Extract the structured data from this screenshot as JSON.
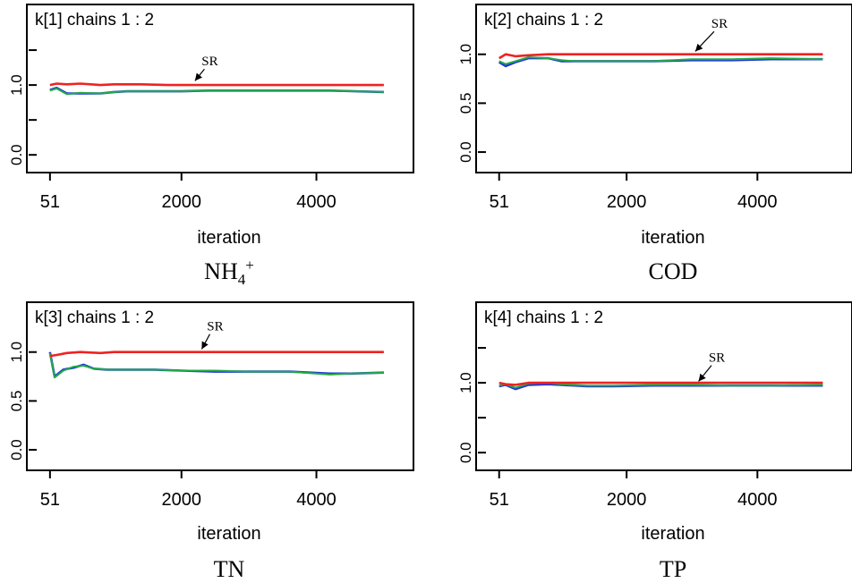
{
  "chart_data": [
    {
      "type": "line",
      "title": "k[1] chains 1 : 2",
      "xlabel": "iteration",
      "caption": "NH",
      "caption_sub": "4",
      "caption_sup": "+",
      "annotation": "SR",
      "xlim": [
        0,
        5200
      ],
      "ylim": [
        -0.1,
        2.0
      ],
      "xticks": [
        51,
        2000,
        4000
      ],
      "yticks": [
        0.0,
        1.0
      ],
      "yminor": [
        0.5,
        1.5
      ],
      "grid": false,
      "series": [
        {
          "color": "#2233dd",
          "x": [
            51,
            150,
            300,
            500,
            800,
            1000,
            1200,
            1600,
            2000,
            2400,
            3000,
            3600,
            4200,
            5000
          ],
          "y": [
            0.93,
            0.96,
            0.88,
            0.88,
            0.88,
            0.9,
            0.91,
            0.91,
            0.91,
            0.92,
            0.92,
            0.92,
            0.92,
            0.9
          ]
        },
        {
          "color": "#22aa44",
          "x": [
            51,
            150,
            300,
            500,
            800,
            1000,
            1200,
            1600,
            2000,
            2400,
            3000,
            3600,
            4200,
            5000
          ],
          "y": [
            0.92,
            0.95,
            0.87,
            0.89,
            0.88,
            0.9,
            0.91,
            0.91,
            0.91,
            0.92,
            0.92,
            0.92,
            0.92,
            0.9
          ]
        },
        {
          "color": "#ee2222",
          "x": [
            51,
            150,
            300,
            500,
            800,
            1000,
            1400,
            1800,
            2300,
            2800,
            3500,
            4200,
            5000
          ],
          "y": [
            1.0,
            1.02,
            1.01,
            1.02,
            1.0,
            1.01,
            1.01,
            1.0,
            1.0,
            1.0,
            1.0,
            1.0,
            1.0
          ]
        }
      ]
    },
    {
      "type": "line",
      "title": "k[2] chains 1 : 2",
      "xlabel": "iteration",
      "caption": "COD",
      "annotation": "SR",
      "xlim": [
        0,
        5200
      ],
      "ylim": [
        -0.1,
        1.4
      ],
      "xticks": [
        51,
        2000,
        4000
      ],
      "yticks": [
        0.0,
        0.5,
        1.0
      ],
      "grid": false,
      "series": [
        {
          "color": "#2233dd",
          "x": [
            51,
            150,
            300,
            500,
            800,
            1000,
            1200,
            1600,
            2000,
            2400,
            3000,
            3600,
            4200,
            5000
          ],
          "y": [
            0.92,
            0.88,
            0.92,
            0.96,
            0.96,
            0.93,
            0.93,
            0.93,
            0.93,
            0.93,
            0.94,
            0.94,
            0.95,
            0.95
          ]
        },
        {
          "color": "#22aa44",
          "x": [
            51,
            150,
            300,
            500,
            800,
            1000,
            1200,
            1600,
            2000,
            2400,
            3000,
            3600,
            4200,
            5000
          ],
          "y": [
            0.93,
            0.9,
            0.93,
            0.97,
            0.96,
            0.94,
            0.93,
            0.93,
            0.93,
            0.93,
            0.95,
            0.95,
            0.96,
            0.95
          ]
        },
        {
          "color": "#ee2222",
          "x": [
            51,
            150,
            300,
            500,
            800,
            1200,
            2000,
            3000,
            4000,
            5000
          ],
          "y": [
            0.96,
            1.0,
            0.98,
            0.99,
            1.0,
            1.0,
            1.0,
            1.0,
            1.0,
            1.0
          ]
        }
      ]
    },
    {
      "type": "line",
      "title": "k[3] chains 1 : 2",
      "xlabel": "iteration",
      "caption": "TN",
      "annotation": "SR",
      "xlim": [
        0,
        5200
      ],
      "ylim": [
        -0.1,
        1.4
      ],
      "xticks": [
        51,
        2000,
        4000
      ],
      "yticks": [
        0.0,
        0.5,
        1.0
      ],
      "grid": false,
      "series": [
        {
          "color": "#2233dd",
          "x": [
            51,
            120,
            250,
            400,
            550,
            700,
            900,
            1200,
            1600,
            2000,
            2500,
            3000,
            3600,
            4200,
            4500,
            5000
          ],
          "y": [
            1.0,
            0.75,
            0.82,
            0.84,
            0.87,
            0.83,
            0.82,
            0.82,
            0.82,
            0.81,
            0.8,
            0.8,
            0.8,
            0.78,
            0.78,
            0.79
          ]
        },
        {
          "color": "#22aa44",
          "x": [
            51,
            120,
            250,
            400,
            550,
            700,
            900,
            1200,
            1600,
            2000,
            2500,
            3000,
            3600,
            4200,
            4500,
            5000
          ],
          "y": [
            0.99,
            0.74,
            0.81,
            0.85,
            0.86,
            0.83,
            0.82,
            0.82,
            0.82,
            0.81,
            0.81,
            0.8,
            0.8,
            0.77,
            0.78,
            0.79
          ]
        },
        {
          "color": "#ee2222",
          "x": [
            51,
            150,
            300,
            500,
            800,
            1000,
            2000,
            3000,
            4000,
            5000
          ],
          "y": [
            0.96,
            0.97,
            0.99,
            1.0,
            0.99,
            1.0,
            1.0,
            1.0,
            1.0,
            1.0
          ]
        }
      ]
    },
    {
      "type": "line",
      "title": "k[4] chains 1 : 2",
      "xlabel": "iteration",
      "caption": "TP",
      "annotation": "SR",
      "xlim": [
        0,
        5200
      ],
      "ylim": [
        -0.1,
        2.0
      ],
      "xticks": [
        51,
        2000,
        4000
      ],
      "yticks": [
        0.0,
        1.0
      ],
      "yminor": [
        0.5,
        1.5
      ],
      "grid": false,
      "series": [
        {
          "color": "#2233dd",
          "x": [
            51,
            150,
            300,
            500,
            800,
            1000,
            1400,
            1800,
            2400,
            3000,
            3600,
            4200,
            5000
          ],
          "y": [
            0.95,
            0.97,
            0.91,
            0.97,
            0.98,
            0.97,
            0.95,
            0.95,
            0.96,
            0.96,
            0.96,
            0.96,
            0.96
          ]
        },
        {
          "color": "#22aa44",
          "x": [
            51,
            150,
            300,
            500,
            800,
            1000,
            1400,
            1800,
            2400,
            3000,
            3600,
            4200,
            5000
          ],
          "y": [
            0.96,
            0.98,
            0.93,
            0.99,
            1.0,
            0.98,
            0.96,
            0.96,
            0.97,
            0.97,
            0.96,
            0.96,
            0.97
          ]
        },
        {
          "color": "#ee2222",
          "x": [
            51,
            150,
            300,
            500,
            800,
            1200,
            2000,
            3000,
            4000,
            5000
          ],
          "y": [
            1.0,
            0.98,
            0.97,
            1.0,
            1.0,
            1.0,
            1.0,
            1.0,
            1.0,
            1.0
          ]
        }
      ]
    }
  ]
}
